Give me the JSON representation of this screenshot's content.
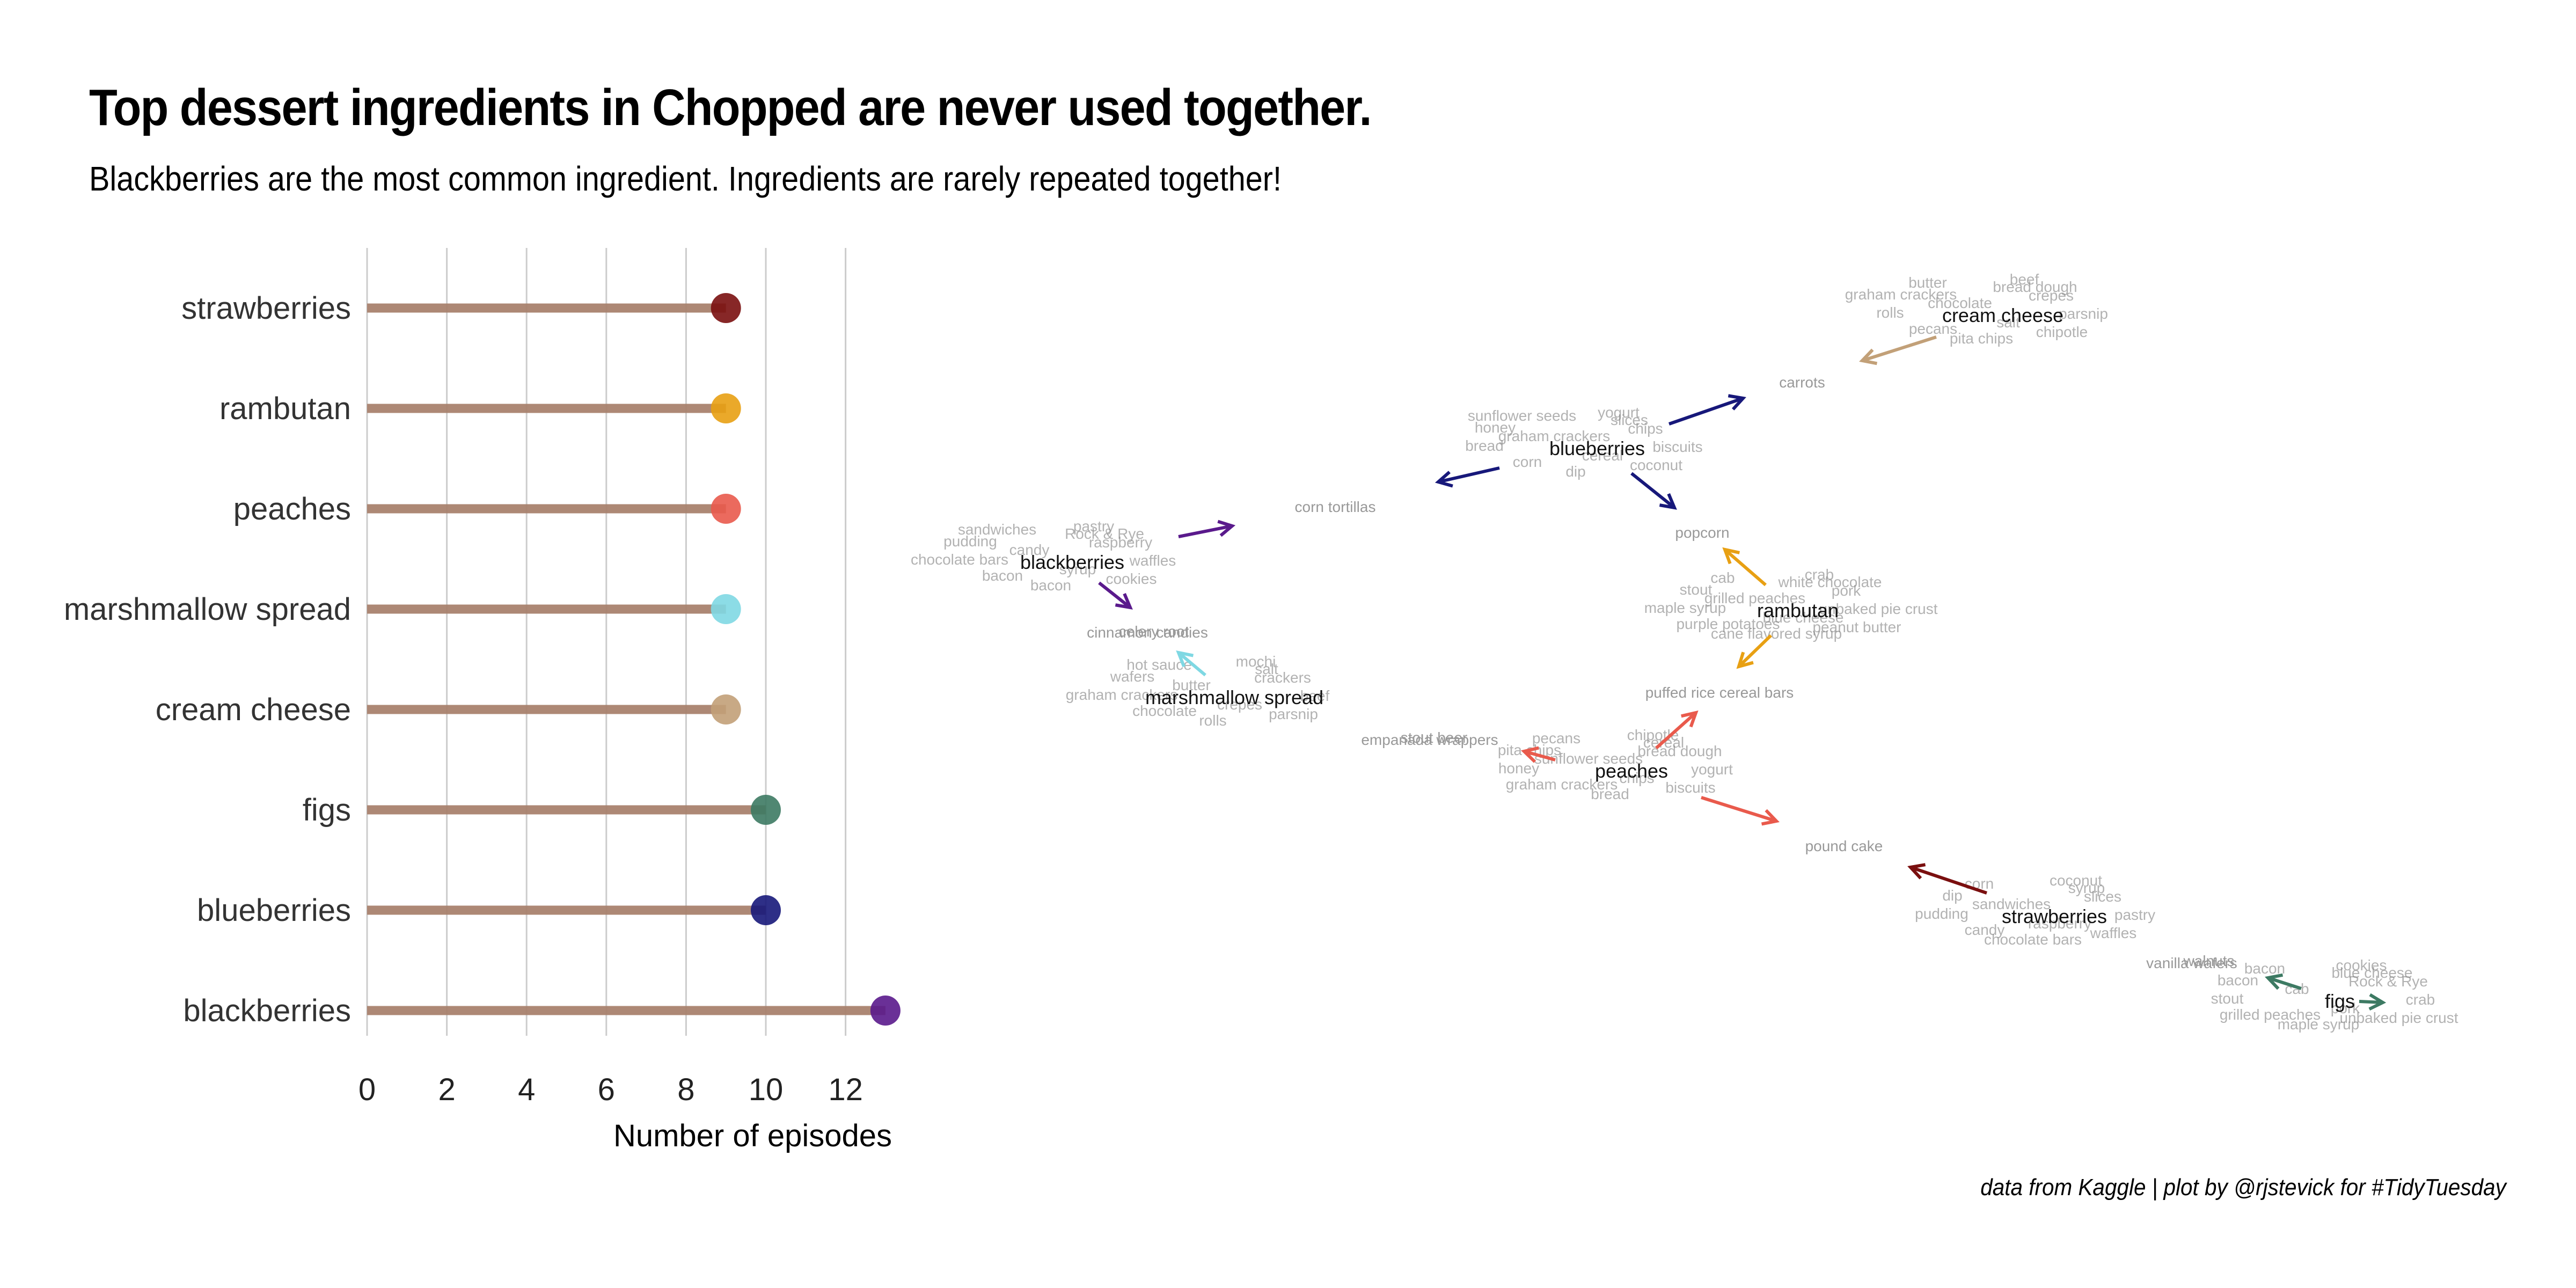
{
  "title": "Top dessert ingredients in Chopped are never used together.",
  "subtitle": "Blackberries are the most common ingredient. Ingredients are rarely repeated together!",
  "caption": "data from Kaggle | plot by @rjstevick for #TidyTuesday",
  "colors": {
    "stem": "#a9826e",
    "grid": "#cccccc",
    "strawberries": "#7a0f0f",
    "rambutan": "#e8a013",
    "peaches": "#e95a4c",
    "marshmallow spread": "#7fd8e3",
    "cream cheese": "#c2a078",
    "figs": "#3d7a63",
    "blueberries": "#17187a",
    "blackberries": "#5a1a8c"
  },
  "chart_data": [
    {
      "type": "lollipop",
      "categories": [
        "strawberries",
        "rambutan",
        "peaches",
        "marshmallow spread",
        "cream cheese",
        "figs",
        "blueberries",
        "blackberries"
      ],
      "values": [
        9,
        9,
        9,
        9,
        9,
        10,
        10,
        13
      ],
      "xlabel": "Number of episodes",
      "ylabel": "",
      "xlim": [
        0,
        13
      ],
      "xticks": [
        0,
        2,
        4,
        6,
        8,
        10,
        12
      ],
      "grid": "vertical"
    },
    {
      "type": "network",
      "hubs": [
        "cream cheese",
        "blueberries",
        "blackberries",
        "rambutan",
        "marshmallow spread",
        "peaches",
        "strawberries",
        "figs"
      ],
      "secondary": [
        "carrots",
        "corn tortillas",
        "popcorn",
        "cinnamon candies",
        "puffed rice cereal bars",
        "empanada wrappers",
        "pound cake",
        "celery root",
        "stout beer",
        "walnuts",
        "vanilla wafers"
      ],
      "leaf_labels": [
        "butter",
        "beef",
        "graham crackers",
        "crepes",
        "chocolate",
        "parsnip",
        "rolls",
        "salt",
        "pecans",
        "chipotle",
        "pita chips",
        "bread dough",
        "sunflower seeds",
        "yogurt",
        "honey",
        "chips",
        "graham crackers",
        "biscuits",
        "bread",
        "cereal",
        "corn",
        "coconut",
        "dip",
        "slices",
        "sandwiches",
        "pastry",
        "pudding",
        "raspberry",
        "candy",
        "waffles",
        "chocolate bars",
        "syrup",
        "bacon",
        "cookies",
        "bacon",
        "Rock & Rye",
        "cab",
        "crab",
        "stout",
        "pork",
        "grilled peaches",
        "unbaked pie crust",
        "maple syrup",
        "blue cheese",
        "purple potatoes",
        "peanut butter",
        "cane flavored syrup",
        "white chocolate",
        "hot sauce",
        "mochi",
        "wafers",
        "crackers"
      ]
    }
  ]
}
